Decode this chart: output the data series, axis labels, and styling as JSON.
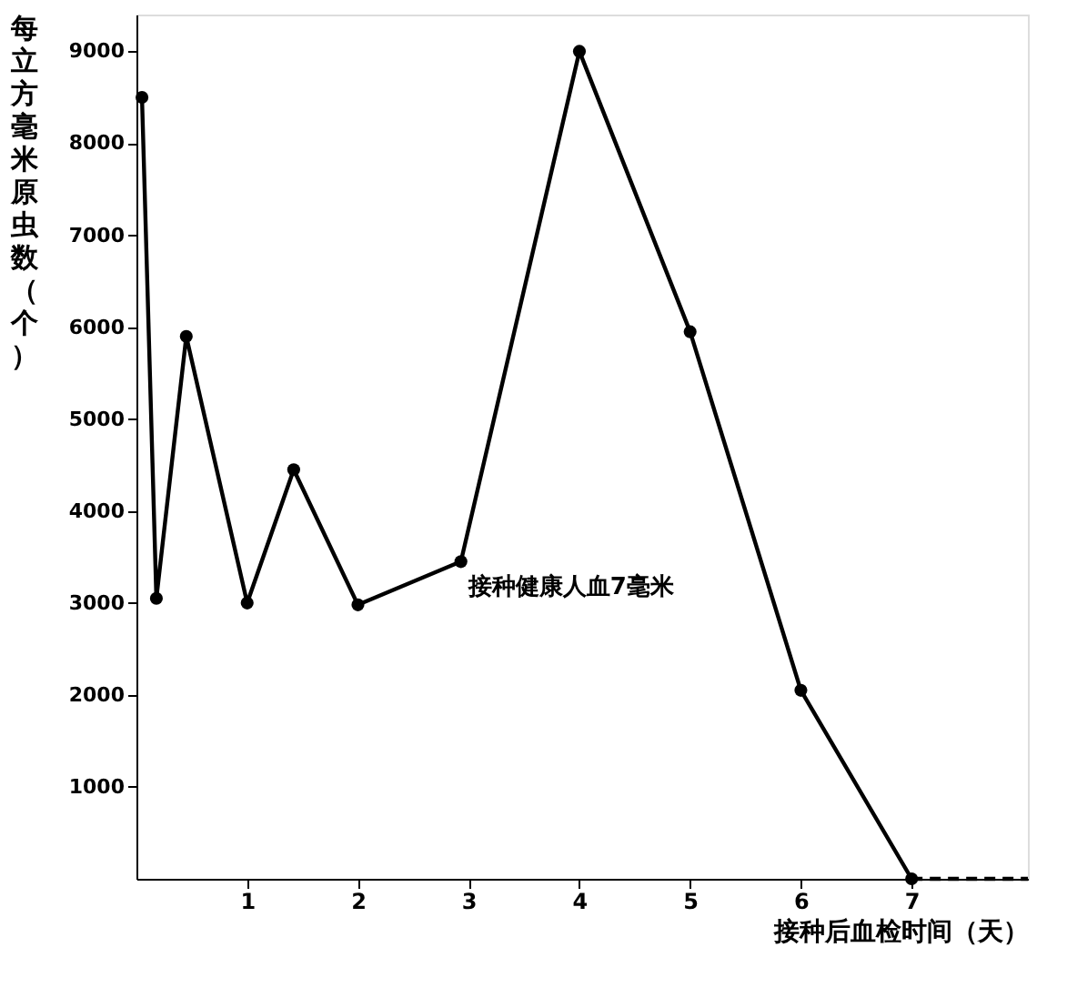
{
  "chart_data": {
    "type": "line",
    "xlabel": "接种后血检时间（天）",
    "ylabel": "每立方毫米原虫数（个）",
    "xlim": [
      0,
      8.05
    ],
    "xticks": [
      1,
      2,
      3,
      4,
      5,
      6,
      7
    ],
    "ylim": [
      0,
      9400
    ],
    "yticks": [
      1000,
      2000,
      3000,
      4000,
      5000,
      6000,
      7000,
      8000,
      9000
    ],
    "grid": false,
    "marker": "circle",
    "series": [
      {
        "color": "#000000",
        "x": [
          0.05,
          0.18,
          0.45,
          1,
          1.42,
          2,
          2.93,
          4,
          5,
          6,
          7
        ],
        "values": [
          8500,
          3050,
          5900,
          3000,
          4450,
          2980,
          3450,
          9000,
          5950,
          2050,
          0
        ]
      },
      {
        "color": "#000000",
        "type": "line",
        "marker": "none",
        "line_style": "dashed",
        "x": [
          7,
          8.05
        ],
        "values": [
          0,
          0
        ]
      }
    ],
    "annotations": [
      {
        "text": "接种健康人血7毫米",
        "x": 2.93,
        "y": 3450
      }
    ]
  }
}
